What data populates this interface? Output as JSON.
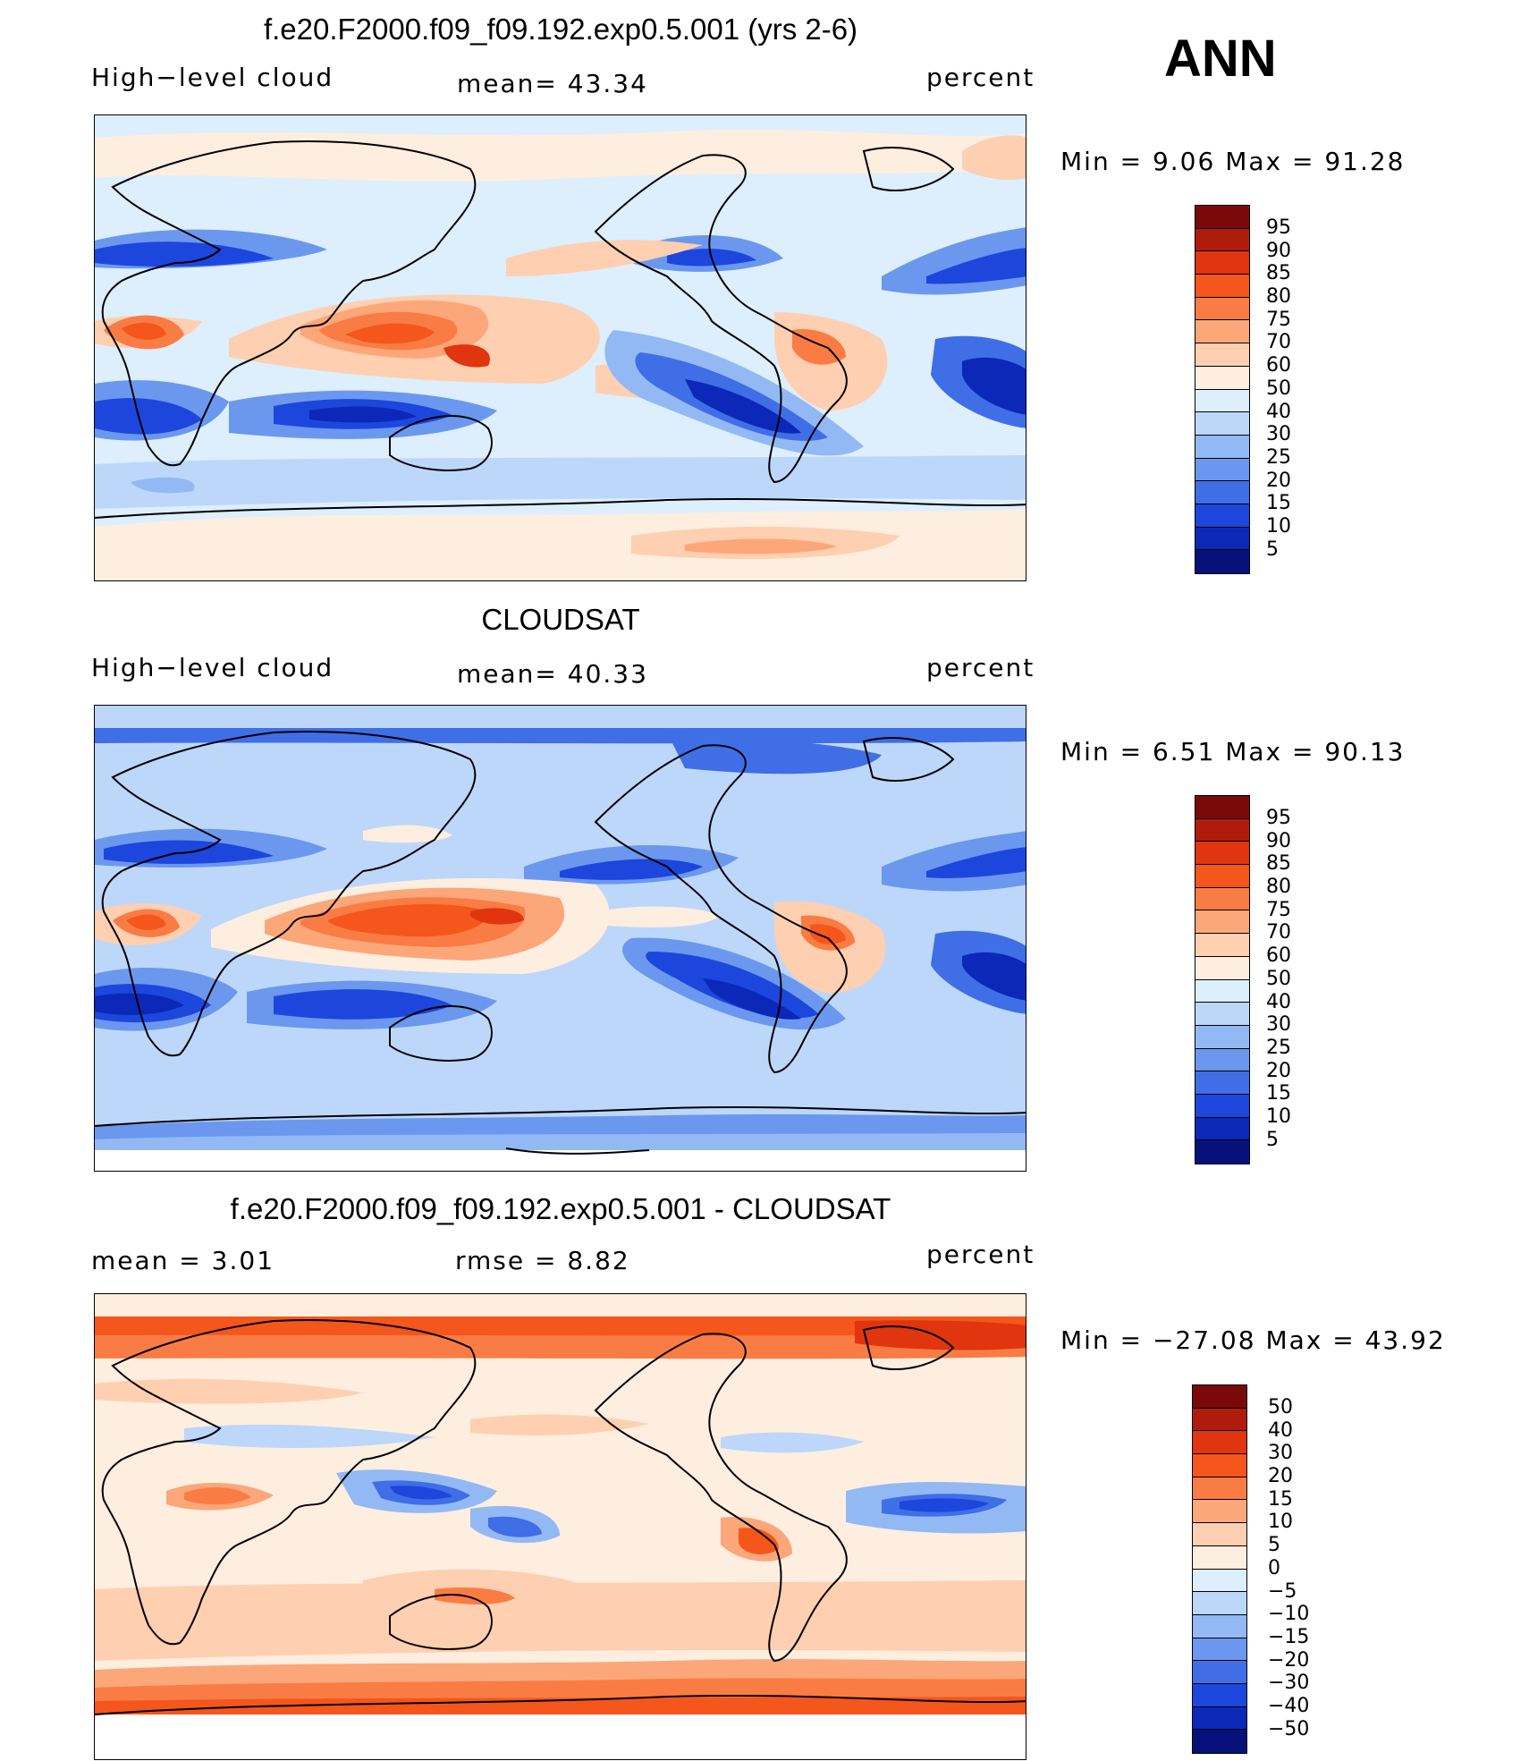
{
  "main_title": "ANN",
  "panels": [
    {
      "title": "f.e20.F2000.f09_f09.192.exp0.5.001 (yrs 2-6)",
      "left_label": "High−level cloud",
      "center_label": "mean=   43.34",
      "right_label": "percent",
      "minmax": "Min  =     9.06  Max  =    91.28",
      "colorbar_labels": [
        "95",
        "90",
        "85",
        "80",
        "75",
        "70",
        "60",
        "50",
        "40",
        "30",
        "25",
        "20",
        "15",
        "10",
        "5"
      ]
    },
    {
      "title": "CLOUDSAT",
      "left_label": "High−level cloud",
      "center_label": "mean=   40.33",
      "right_label": "percent",
      "minmax": "Min  =     6.51  Max  =    90.13",
      "colorbar_labels": [
        "95",
        "90",
        "85",
        "80",
        "75",
        "70",
        "60",
        "50",
        "40",
        "30",
        "25",
        "20",
        "15",
        "10",
        "5"
      ]
    },
    {
      "title": "f.e20.F2000.f09_f09.192.exp0.5.001 - CLOUDSAT",
      "left_label": "mean  =     3.01",
      "center_label": "rmse  =     8.82",
      "right_label": "percent",
      "minmax": "Min  =  −27.08  Max  =    43.92",
      "colorbar_labels": [
        "50",
        "40",
        "30",
        "20",
        "15",
        "10",
        "5",
        "0",
        "−5",
        "−10",
        "−15",
        "−20",
        "−30",
        "−40",
        "−50"
      ]
    }
  ],
  "colors": {
    "scale": [
      "#7a0a0a",
      "#b01c0c",
      "#e0350f",
      "#f4561c",
      "#fa7c45",
      "#fca77a",
      "#fecfb0",
      "#fdeee0",
      "#ddeefc",
      "#bcd7fa",
      "#93b9f4",
      "#6b98ee",
      "#3f6ee6",
      "#1d46dc",
      "#0b28b8",
      "#06127a"
    ],
    "land_outline": "#000000"
  }
}
